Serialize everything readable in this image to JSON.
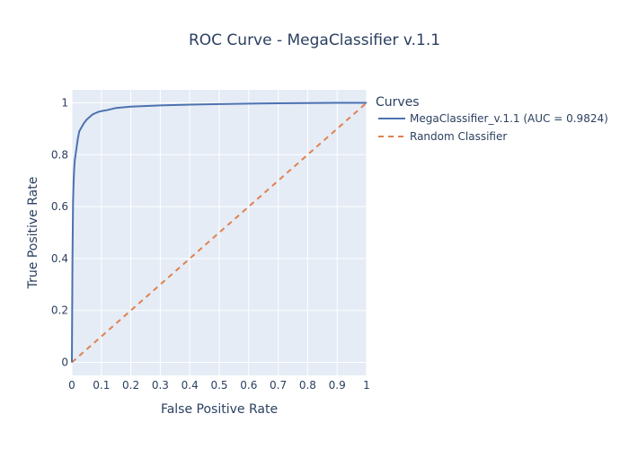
{
  "chart_data": {
    "type": "line",
    "title": "ROC Curve - MegaClassifier v.1.1",
    "xlabel": "False Positive Rate",
    "ylabel": "True Positive Rate",
    "xlim": [
      0,
      1
    ],
    "ylim": [
      -0.05,
      1.05
    ],
    "x_ticks": [
      "0",
      "0.1",
      "0.2",
      "0.3",
      "0.4",
      "0.5",
      "0.6",
      "0.7",
      "0.8",
      "0.9",
      "1"
    ],
    "y_ticks": [
      "0",
      "0.2",
      "0.4",
      "0.6",
      "0.8",
      "1"
    ],
    "grid": true,
    "legend_title": "Curves",
    "legend_position": "top-right outside plot",
    "background_color": "#e5ecf6",
    "series": [
      {
        "name": "MegaClassifier_v.1.1 (AUC = 0.9824)",
        "color": "#4c72b0",
        "dash": "solid",
        "x": [
          0,
          0.002,
          0.004,
          0.006,
          0.008,
          0.01,
          0.015,
          0.02,
          0.025,
          0.03,
          0.04,
          0.05,
          0.06,
          0.07,
          0.08,
          0.09,
          0.1,
          0.12,
          0.15,
          0.2,
          0.3,
          0.4,
          0.5,
          0.6,
          0.7,
          0.8,
          0.9,
          1.0
        ],
        "y": [
          0,
          0.4,
          0.62,
          0.7,
          0.75,
          0.78,
          0.82,
          0.86,
          0.89,
          0.9,
          0.92,
          0.935,
          0.945,
          0.955,
          0.96,
          0.965,
          0.968,
          0.972,
          0.98,
          0.985,
          0.99,
          0.993,
          0.995,
          0.997,
          0.998,
          0.999,
          1.0,
          1.0
        ]
      },
      {
        "name": "Random Classifier",
        "color": "#e0814f",
        "dash": "dashed",
        "x": [
          0,
          1
        ],
        "y": [
          0,
          1
        ]
      }
    ]
  }
}
